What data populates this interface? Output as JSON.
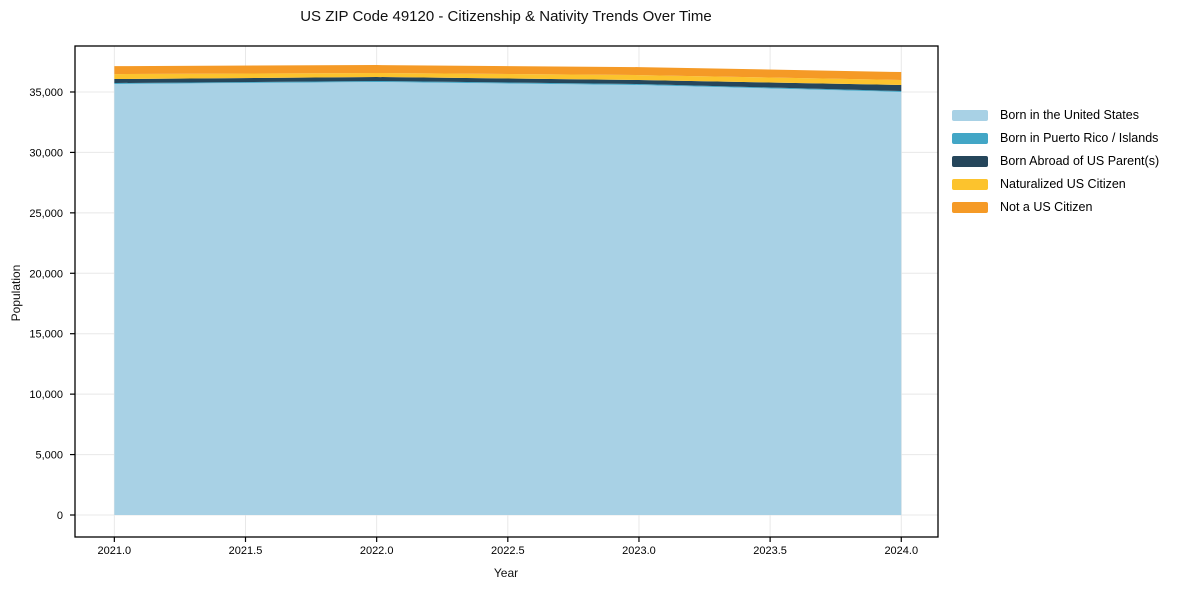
{
  "figure": {
    "background": "#ffffff"
  },
  "chart_data": {
    "type": "area",
    "stacked": true,
    "title": "US ZIP Code 49120 - Citizenship & Nativity Trends Over Time",
    "xlabel": "Year",
    "ylabel": "Population",
    "x": [
      2021,
      2022,
      2023,
      2024
    ],
    "series": [
      {
        "name": "Born in the United States",
        "color": "#a8d1e5",
        "values": [
          35660,
          35830,
          35580,
          35000
        ]
      },
      {
        "name": "Born in Puerto Rico / Islands",
        "color": "#42a6c6",
        "values": [
          80,
          80,
          80,
          80
        ]
      },
      {
        "name": "Born Abroad of US Parent(s)",
        "color": "#25465b",
        "values": [
          330,
          330,
          330,
          500
        ]
      },
      {
        "name": "Naturalized US Citizen",
        "color": "#fcc32d",
        "values": [
          410,
          330,
          410,
          410
        ]
      },
      {
        "name": "Not a US Citizen",
        "color": "#f59a26",
        "values": [
          660,
          660,
          660,
          660
        ]
      }
    ],
    "xticks": {
      "values": [
        2021.0,
        2021.5,
        2022.0,
        2022.5,
        2023.0,
        2023.5,
        2024.0
      ],
      "labels": [
        "2021.0",
        "2021.5",
        "2022.0",
        "2022.5",
        "2023.0",
        "2023.5",
        "2024.0"
      ]
    },
    "yticks": {
      "values": [
        0,
        5000,
        10000,
        15000,
        20000,
        25000,
        30000,
        35000
      ],
      "labels": [
        "0",
        "5,000",
        "10,000",
        "15,000",
        "20,000",
        "25,000",
        "30,000",
        "35,000"
      ]
    },
    "xlim": [
      2020.85,
      2024.14
    ],
    "ylim": [
      -1820,
      38805
    ],
    "grid": true,
    "legend_position": "right-outside",
    "colors": {
      "grid": "#e8e8e8",
      "axis": "#000000",
      "tick_label": "#000000"
    }
  }
}
